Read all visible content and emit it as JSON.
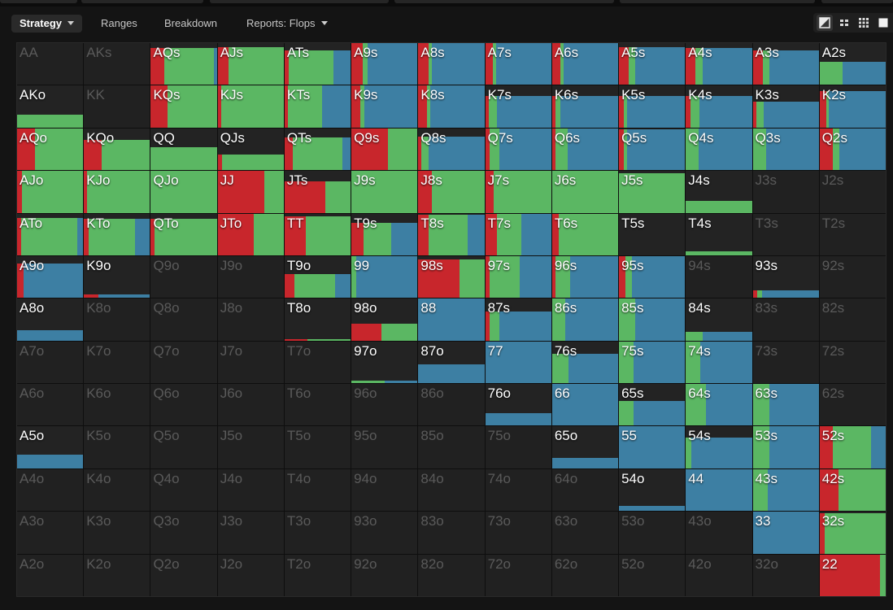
{
  "tabs": [
    {
      "label": "Strategy",
      "active": true,
      "dropdown": true
    },
    {
      "label": "Ranges",
      "active": false,
      "dropdown": false
    },
    {
      "label": "Breakdown",
      "active": false,
      "dropdown": false
    },
    {
      "label": "Reports: Flops",
      "active": false,
      "dropdown": true
    }
  ],
  "view_buttons": [
    "contrast-icon",
    "compact-view-icon",
    "grid-view-icon",
    "full-square-icon"
  ],
  "colors": {
    "raise": "#c8262c",
    "call": "#5bb763",
    "fold": "#3d7fa3",
    "empty": "#232323",
    "background": "#141414"
  },
  "matrix": [
    [
      {
        "h": "AA",
        "off": 1
      },
      {
        "h": "AKs",
        "off": 1
      },
      {
        "h": "AQs",
        "p": 0.88,
        "r": 0.2,
        "c": 0.75,
        "f": 0.05
      },
      {
        "h": "AJs",
        "p": 0.9,
        "r": 0.17,
        "c": 0.83
      },
      {
        "h": "ATs",
        "p": 0.82,
        "r": 0.06,
        "c": 0.68,
        "f": 0.26
      },
      {
        "h": "A9s",
        "p": 1,
        "r": 0.17,
        "c": 0.07,
        "f": 0.76
      },
      {
        "h": "A8s",
        "p": 1,
        "r": 0.15,
        "c": 0.05,
        "f": 0.8
      },
      {
        "h": "A7s",
        "p": 1,
        "r": 0.12,
        "c": 0.05,
        "f": 0.83
      },
      {
        "h": "A6s",
        "p": 1,
        "r": 0.13,
        "c": 0.04,
        "f": 0.83
      },
      {
        "h": "A5s",
        "p": 0.9,
        "r": 0.15,
        "c": 0.1,
        "f": 0.75
      },
      {
        "h": "A4s",
        "p": 0.88,
        "r": 0.15,
        "c": 0.1,
        "f": 0.75
      },
      {
        "h": "A3s",
        "p": 0.82,
        "r": 0.15,
        "c": 0.1,
        "f": 0.75
      },
      {
        "h": "A2s",
        "p": 0.55,
        "c": 0.35,
        "f": 0.65
      }
    ],
    [
      {
        "h": "AKo",
        "p": 0.3,
        "c": 1
      },
      {
        "h": "KK",
        "off": 1
      },
      {
        "h": "KQs",
        "p": 1,
        "r": 0.25,
        "c": 0.75
      },
      {
        "h": "KJs",
        "p": 1,
        "r": 0.05,
        "c": 0.95
      },
      {
        "h": "KTs",
        "p": 1,
        "r": 0.05,
        "c": 0.52,
        "f": 0.43
      },
      {
        "h": "K9s",
        "p": 1,
        "r": 0.13,
        "c": 0.07,
        "f": 0.8
      },
      {
        "h": "K8s",
        "p": 1,
        "r": 0.13,
        "c": 0.05,
        "f": 0.82
      },
      {
        "h": "K7s",
        "p": 0.75,
        "r": 0.05,
        "c": 0.13,
        "f": 0.82
      },
      {
        "h": "K6s",
        "p": 0.75,
        "r": 0.05,
        "c": 0.08,
        "f": 0.87
      },
      {
        "h": "K5s",
        "p": 0.75,
        "r": 0.07,
        "c": 0.05,
        "f": 0.88
      },
      {
        "h": "K4s",
        "p": 0.75,
        "r": 0.07,
        "c": 0.14,
        "f": 0.79
      },
      {
        "h": "K3s",
        "p": 0.62,
        "r": 0.05,
        "c": 0.12,
        "f": 0.83
      },
      {
        "h": "K2s",
        "p": 0.88,
        "r": 0.1,
        "c": 0.04,
        "f": 0.86
      }
    ],
    [
      {
        "h": "AQo",
        "p": 1,
        "r": 0.27,
        "c": 0.73
      },
      {
        "h": "KQo",
        "p": 0.72,
        "r": 0.27,
        "c": 0.73
      },
      {
        "h": "QQ",
        "p": 0.55,
        "c": 1
      },
      {
        "h": "QJs",
        "p": 0.38,
        "r": 0.07,
        "c": 0.93
      },
      {
        "h": "QTs",
        "p": 0.78,
        "r": 0.12,
        "c": 0.75,
        "f": 0.13
      },
      {
        "h": "Q9s",
        "p": 1,
        "r": 0.55,
        "c": 0.45
      },
      {
        "h": "Q8s",
        "p": 0.8,
        "r": 0.05,
        "c": 0.1,
        "f": 0.85
      },
      {
        "h": "Q7s",
        "p": 1,
        "r": 0.07,
        "c": 0.15,
        "f": 0.78
      },
      {
        "h": "Q6s",
        "p": 1,
        "r": 0.05,
        "c": 0.19,
        "f": 0.76
      },
      {
        "h": "Q5s",
        "p": 0.98,
        "r": 0.07,
        "c": 0.05,
        "f": 0.88
      },
      {
        "h": "Q4s",
        "p": 1,
        "c": 0.19,
        "f": 0.81
      },
      {
        "h": "Q3s",
        "p": 1,
        "c": 0.2,
        "f": 0.8
      },
      {
        "h": "Q2s",
        "p": 1,
        "r": 0.2,
        "c": 0.1,
        "f": 0.7
      }
    ],
    [
      {
        "h": "AJo",
        "p": 1,
        "r": 0.07,
        "c": 0.93
      },
      {
        "h": "KJo",
        "p": 1,
        "r": 0.05,
        "c": 0.95
      },
      {
        "h": "QJo",
        "p": 1,
        "c": 1
      },
      {
        "h": "JJ",
        "p": 1,
        "r": 0.7,
        "c": 0.3
      },
      {
        "h": "JTs",
        "p": 0.75,
        "r": 0.62,
        "c": 0.38
      },
      {
        "h": "J9s",
        "p": 1,
        "c": 1
      },
      {
        "h": "J8s",
        "p": 1,
        "r": 0.2,
        "c": 0.8
      },
      {
        "h": "J7s",
        "p": 1,
        "r": 0.13,
        "c": 0.87
      },
      {
        "h": "J6s",
        "p": 1,
        "c": 1
      },
      {
        "h": "J5s",
        "p": 0.95,
        "c": 1
      },
      {
        "h": "J4s",
        "p": 0.28,
        "c": 1
      },
      {
        "h": "J3s",
        "off": 1
      },
      {
        "h": "J2s",
        "off": 1
      }
    ],
    [
      {
        "h": "ATo",
        "p": 0.9,
        "r": 0.06,
        "c": 0.85,
        "f": 0.09
      },
      {
        "h": "KTo",
        "p": 0.88,
        "r": 0.07,
        "c": 0.7,
        "f": 0.23
      },
      {
        "h": "QTo",
        "p": 0.88,
        "r": 0.05,
        "c": 0.95
      },
      {
        "h": "JTo",
        "p": 1,
        "r": 0.55,
        "c": 0.45
      },
      {
        "h": "TT",
        "p": 0.93,
        "r": 0.32,
        "c": 0.68
      },
      {
        "h": "T9s",
        "p": 0.77,
        "r": 0.18,
        "c": 0.42,
        "f": 0.4
      },
      {
        "h": "T8s",
        "p": 0.98,
        "r": 0.15,
        "c": 0.6,
        "f": 0.25
      },
      {
        "h": "T7s",
        "p": 1,
        "r": 0.18,
        "c": 0.37,
        "f": 0.45
      },
      {
        "h": "T6s",
        "p": 1,
        "r": 0.1,
        "c": 0.9
      },
      {
        "h": "T5s",
        "off": 0
      },
      {
        "h": "T4s",
        "p": 0.1,
        "c": 1
      },
      {
        "h": "T3s",
        "off": 1
      },
      {
        "h": "T2s",
        "off": 1
      }
    ],
    [
      {
        "h": "A9o",
        "p": 0.83,
        "r": 0.1,
        "f": 0.9
      },
      {
        "h": "K9o",
        "p": 0.08,
        "r": 0.22,
        "f": 0.78
      },
      {
        "h": "Q9o",
        "off": 1
      },
      {
        "h": "J9o",
        "off": 1
      },
      {
        "h": "T9o",
        "p": 0.58,
        "r": 0.15,
        "c": 0.62,
        "f": 0.23
      },
      {
        "h": "99",
        "p": 1,
        "c": 0.07,
        "f": 0.93
      },
      {
        "h": "98s",
        "p": 0.92,
        "r": 0.62,
        "c": 0.38
      },
      {
        "h": "97s",
        "p": 1,
        "r": 0.07,
        "c": 0.45,
        "f": 0.48
      },
      {
        "h": "96s",
        "p": 1,
        "r": 0.05,
        "c": 0.22,
        "f": 0.73
      },
      {
        "h": "95s",
        "p": 1,
        "r": 0.1,
        "c": 0.1,
        "f": 0.8
      },
      {
        "h": "94s",
        "off": 1
      },
      {
        "h": "93s",
        "p": 0.18,
        "r": 0.07,
        "c": 0.07,
        "f": 0.86
      },
      {
        "h": "92s",
        "off": 1
      }
    ],
    [
      {
        "h": "A8o",
        "p": 0.24,
        "f": 1
      },
      {
        "h": "K8o",
        "off": 1
      },
      {
        "h": "Q8o",
        "off": 1
      },
      {
        "h": "J8o",
        "off": 1
      },
      {
        "h": "T8o",
        "p": 0.04,
        "r": 0.35,
        "c": 0.65
      },
      {
        "h": "98o",
        "p": 0.4,
        "r": 0.45,
        "c": 0.55
      },
      {
        "h": "88",
        "p": 1,
        "f": 1
      },
      {
        "h": "87s",
        "p": 0.7,
        "r": 0.07,
        "c": 0.15,
        "f": 0.78
      },
      {
        "h": "86s",
        "p": 1,
        "c": 0.2,
        "f": 0.8
      },
      {
        "h": "85s",
        "p": 1,
        "c": 0.24,
        "f": 0.76
      },
      {
        "h": "84s",
        "p": 0.2,
        "c": 0.25,
        "f": 0.75
      },
      {
        "h": "83s",
        "off": 1
      },
      {
        "h": "82s",
        "off": 1
      }
    ],
    [
      {
        "h": "A7o",
        "off": 1
      },
      {
        "h": "K7o",
        "off": 1
      },
      {
        "h": "Q7o",
        "off": 1
      },
      {
        "h": "J7o",
        "off": 1
      },
      {
        "h": "T7o",
        "off": 1
      },
      {
        "h": "97o",
        "p": 0.06,
        "c": 0.5,
        "f": 0.5
      },
      {
        "h": "87o",
        "p": 0.44,
        "f": 1
      },
      {
        "h": "77",
        "p": 1,
        "f": 1
      },
      {
        "h": "76s",
        "p": 0.7,
        "c": 0.25,
        "f": 0.75
      },
      {
        "h": "75s",
        "p": 1,
        "c": 0.22,
        "f": 0.78
      },
      {
        "h": "74s",
        "p": 1,
        "c": 0.22,
        "f": 0.78
      },
      {
        "h": "73s",
        "off": 1
      },
      {
        "h": "72s",
        "off": 1
      }
    ],
    [
      {
        "h": "A6o",
        "off": 1
      },
      {
        "h": "K6o",
        "off": 1
      },
      {
        "h": "Q6o",
        "off": 1
      },
      {
        "h": "J6o",
        "off": 1
      },
      {
        "h": "T6o",
        "off": 1
      },
      {
        "h": "96o",
        "off": 1
      },
      {
        "h": "86o",
        "off": 1
      },
      {
        "h": "76o",
        "p": 0.3,
        "f": 1
      },
      {
        "h": "66",
        "p": 1,
        "f": 1
      },
      {
        "h": "65s",
        "p": 0.6,
        "c": 0.22,
        "f": 0.78
      },
      {
        "h": "64s",
        "p": 1,
        "c": 0.3,
        "f": 0.7
      },
      {
        "h": "63s",
        "p": 1,
        "c": 0.25,
        "f": 0.75
      },
      {
        "h": "62s",
        "off": 1
      }
    ],
    [
      {
        "h": "A5o",
        "p": 0.32,
        "f": 1
      },
      {
        "h": "K5o",
        "off": 1
      },
      {
        "h": "Q5o",
        "off": 1
      },
      {
        "h": "J5o",
        "off": 1
      },
      {
        "h": "T5o",
        "off": 1
      },
      {
        "h": "95o",
        "off": 1
      },
      {
        "h": "85o",
        "off": 1
      },
      {
        "h": "75o",
        "off": 1
      },
      {
        "h": "65o",
        "p": 0.25,
        "f": 1
      },
      {
        "h": "55",
        "p": 1,
        "f": 1
      },
      {
        "h": "54s",
        "p": 0.74,
        "c": 0.08,
        "f": 0.92
      },
      {
        "h": "53s",
        "p": 1,
        "c": 0.25,
        "f": 0.75
      },
      {
        "h": "52s",
        "p": 1,
        "r": 0.2,
        "c": 0.58,
        "f": 0.22
      }
    ],
    [
      {
        "h": "A4o",
        "off": 1
      },
      {
        "h": "K4o",
        "off": 1
      },
      {
        "h": "Q4o",
        "off": 1
      },
      {
        "h": "J4o",
        "off": 1
      },
      {
        "h": "T4o",
        "off": 1
      },
      {
        "h": "94o",
        "off": 1
      },
      {
        "h": "84o",
        "off": 1
      },
      {
        "h": "74o",
        "off": 1
      },
      {
        "h": "64o",
        "off": 1
      },
      {
        "h": "54o",
        "p": 0.12,
        "f": 1
      },
      {
        "h": "44",
        "p": 1,
        "f": 1
      },
      {
        "h": "43s",
        "p": 1,
        "c": 0.23,
        "f": 0.77
      },
      {
        "h": "42s",
        "p": 1,
        "r": 0.28,
        "c": 0.72
      }
    ],
    [
      {
        "h": "A3o",
        "off": 1
      },
      {
        "h": "K3o",
        "off": 1
      },
      {
        "h": "Q3o",
        "off": 1
      },
      {
        "h": "J3o",
        "off": 1
      },
      {
        "h": "T3o",
        "off": 1
      },
      {
        "h": "93o",
        "off": 1
      },
      {
        "h": "83o",
        "off": 1
      },
      {
        "h": "73o",
        "off": 1
      },
      {
        "h": "63o",
        "off": 1
      },
      {
        "h": "53o",
        "off": 1
      },
      {
        "h": "43o",
        "off": 1
      },
      {
        "h": "33",
        "p": 1,
        "f": 1
      },
      {
        "h": "32s",
        "p": 0.96,
        "r": 0.08,
        "c": 0.92
      }
    ],
    [
      {
        "h": "A2o",
        "off": 1
      },
      {
        "h": "K2o",
        "off": 1
      },
      {
        "h": "Q2o",
        "off": 1
      },
      {
        "h": "J2o",
        "off": 1
      },
      {
        "h": "T2o",
        "off": 1
      },
      {
        "h": "92o",
        "off": 1
      },
      {
        "h": "82o",
        "off": 1
      },
      {
        "h": "72o",
        "off": 1
      },
      {
        "h": "62o",
        "off": 1
      },
      {
        "h": "52o",
        "off": 1
      },
      {
        "h": "42o",
        "off": 1
      },
      {
        "h": "32o",
        "off": 1
      },
      {
        "h": "22",
        "p": 1,
        "r": 0.92,
        "c": 0.08
      }
    ]
  ]
}
